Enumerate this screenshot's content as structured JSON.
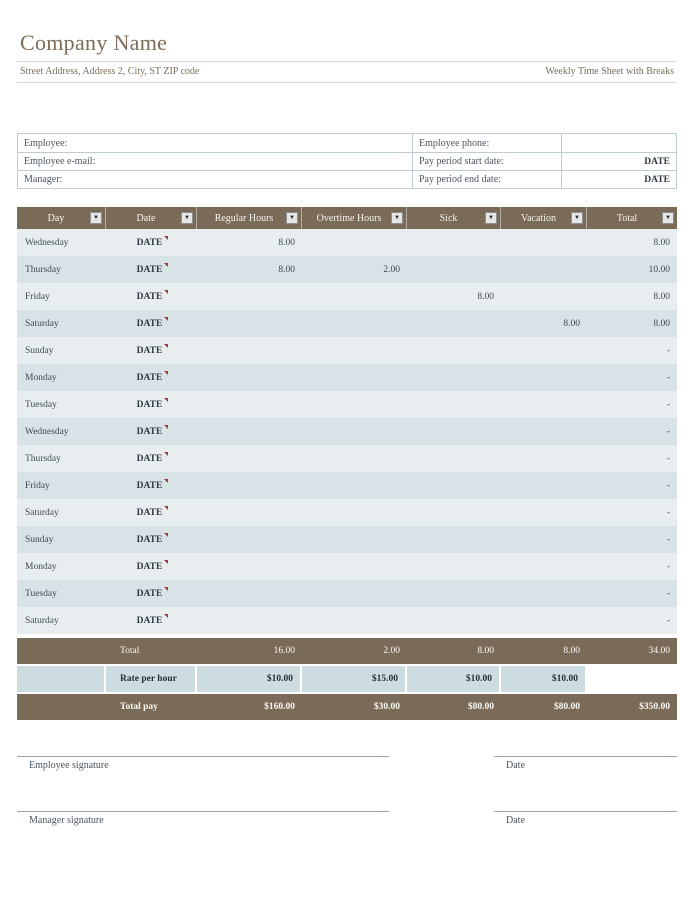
{
  "header": {
    "company_name": "Company Name",
    "address": "Street Address, Address 2, City, ST ZIP code",
    "sheet_title": "Weekly Time Sheet with Breaks"
  },
  "info": {
    "rows": [
      {
        "left_label": "Employee:",
        "left_value": "",
        "right_label": "Employee phone:",
        "right_value": ""
      },
      {
        "left_label": "Employee e-mail:",
        "left_value": "",
        "right_label": "Pay period start date:",
        "right_value": "DATE"
      },
      {
        "left_label": "Manager:",
        "left_value": "",
        "right_label": "Pay period end date:",
        "right_value": "DATE"
      }
    ]
  },
  "timesheet": {
    "columns": [
      "Day",
      "Date",
      "Regular Hours",
      "Overtime Hours",
      "Sick",
      "Vacation",
      "Total"
    ],
    "rows": [
      {
        "day": "Wednesday",
        "date": "DATE",
        "regular": "8.00",
        "overtime": "",
        "sick": "",
        "vacation": "",
        "total": "8.00"
      },
      {
        "day": "Thursday",
        "date": "DATE",
        "regular": "8.00",
        "overtime": "2.00",
        "sick": "",
        "vacation": "",
        "total": "10.00"
      },
      {
        "day": "Friday",
        "date": "DATE",
        "regular": "",
        "overtime": "",
        "sick": "8.00",
        "vacation": "",
        "total": "8.00"
      },
      {
        "day": "Saturday",
        "date": "DATE",
        "regular": "",
        "overtime": "",
        "sick": "",
        "vacation": "8.00",
        "total": "8.00"
      },
      {
        "day": "Sunday",
        "date": "DATE",
        "regular": "",
        "overtime": "",
        "sick": "",
        "vacation": "",
        "total": "-"
      },
      {
        "day": "Monday",
        "date": "DATE",
        "regular": "",
        "overtime": "",
        "sick": "",
        "vacation": "",
        "total": "-"
      },
      {
        "day": "Tuesday",
        "date": "DATE",
        "regular": "",
        "overtime": "",
        "sick": "",
        "vacation": "",
        "total": "-"
      },
      {
        "day": "Wednesday",
        "date": "DATE",
        "regular": "",
        "overtime": "",
        "sick": "",
        "vacation": "",
        "total": "-"
      },
      {
        "day": "Thursday",
        "date": "DATE",
        "regular": "",
        "overtime": "",
        "sick": "",
        "vacation": "",
        "total": "-"
      },
      {
        "day": "Friday",
        "date": "DATE",
        "regular": "",
        "overtime": "",
        "sick": "",
        "vacation": "",
        "total": "-"
      },
      {
        "day": "Saturday",
        "date": "DATE",
        "regular": "",
        "overtime": "",
        "sick": "",
        "vacation": "",
        "total": "-"
      },
      {
        "day": "Sunday",
        "date": "DATE",
        "regular": "",
        "overtime": "",
        "sick": "",
        "vacation": "",
        "total": "-"
      },
      {
        "day": "Monday",
        "date": "DATE",
        "regular": "",
        "overtime": "",
        "sick": "",
        "vacation": "",
        "total": "-"
      },
      {
        "day": "Tuesday",
        "date": "DATE",
        "regular": "",
        "overtime": "",
        "sick": "",
        "vacation": "",
        "total": "-"
      },
      {
        "day": "Saturday",
        "date": "DATE",
        "regular": "",
        "overtime": "",
        "sick": "",
        "vacation": "",
        "total": "-"
      }
    ],
    "totals": {
      "label": "Total",
      "regular": "16.00",
      "overtime": "2.00",
      "sick": "8.00",
      "vacation": "8.00",
      "total": "34.00"
    },
    "rate": {
      "label": "Rate per hour",
      "regular": "$10.00",
      "overtime": "$15.00",
      "sick": "$10.00",
      "vacation": "$10.00",
      "total": ""
    },
    "pay": {
      "label": "Total pay",
      "regular": "$160.00",
      "overtime": "$30.00",
      "sick": "$80.00",
      "vacation": "$80.00",
      "total": "$350.00"
    }
  },
  "signatures": {
    "employee_label": "Employee signature",
    "manager_label": "Manager signature",
    "date_label": "Date"
  },
  "colors": {
    "brand_brown": "#7a6b59",
    "band_light": "#e8eef0",
    "band_dark": "#d8e3e7",
    "rate_row_bg": "#ccdce1",
    "border": "#bccdd4",
    "text": "#3e4a54",
    "comment_marker": "#a33c32"
  }
}
